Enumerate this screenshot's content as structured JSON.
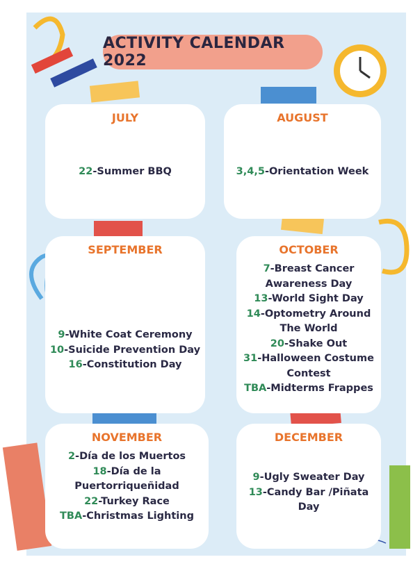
{
  "title": "ACTIVITY CALENDAR 2022",
  "months": [
    {
      "name": "JULY",
      "events": [
        {
          "day": "22",
          "text": "-Summer BBQ"
        }
      ]
    },
    {
      "name": "AUGUST",
      "events": [
        {
          "day": "3,4,5",
          "text": "-Orientation Week"
        }
      ]
    },
    {
      "name": "SEPTEMBER",
      "events": [
        {
          "day": "9",
          "text": "-White Coat Ceremony"
        },
        {
          "day": "10",
          "text": "-Suicide Prevention Day"
        },
        {
          "day": "16",
          "text": "-Constitution Day"
        }
      ]
    },
    {
      "name": "OCTOBER",
      "events": [
        {
          "day": "7",
          "text": "-Breast Cancer Awareness Day"
        },
        {
          "day": "13",
          "text": "-World Sight Day"
        },
        {
          "day": "14",
          "text": "-Optometry Around The World"
        },
        {
          "day": "20",
          "text": "-Shake Out"
        },
        {
          "day": "31",
          "text": "-Halloween Costume Contest"
        },
        {
          "day": "TBA",
          "text": "-Midterms Frappes"
        }
      ]
    },
    {
      "name": "NOVEMBER",
      "events": [
        {
          "day": "2",
          "text": "-Día de los Muertos"
        },
        {
          "day": "18",
          "text": "-Día de la Puertorriqueñidad"
        },
        {
          "day": "22",
          "text": "-Turkey Race"
        },
        {
          "day": "TBA",
          "text": "-Christmas Lighting"
        }
      ]
    },
    {
      "name": "DECEMBER",
      "events": [
        {
          "day": "9",
          "text": "-Ugly Sweater Day"
        },
        {
          "day": "13",
          "text": "-Candy Bar /Piñata Day"
        }
      ]
    }
  ]
}
